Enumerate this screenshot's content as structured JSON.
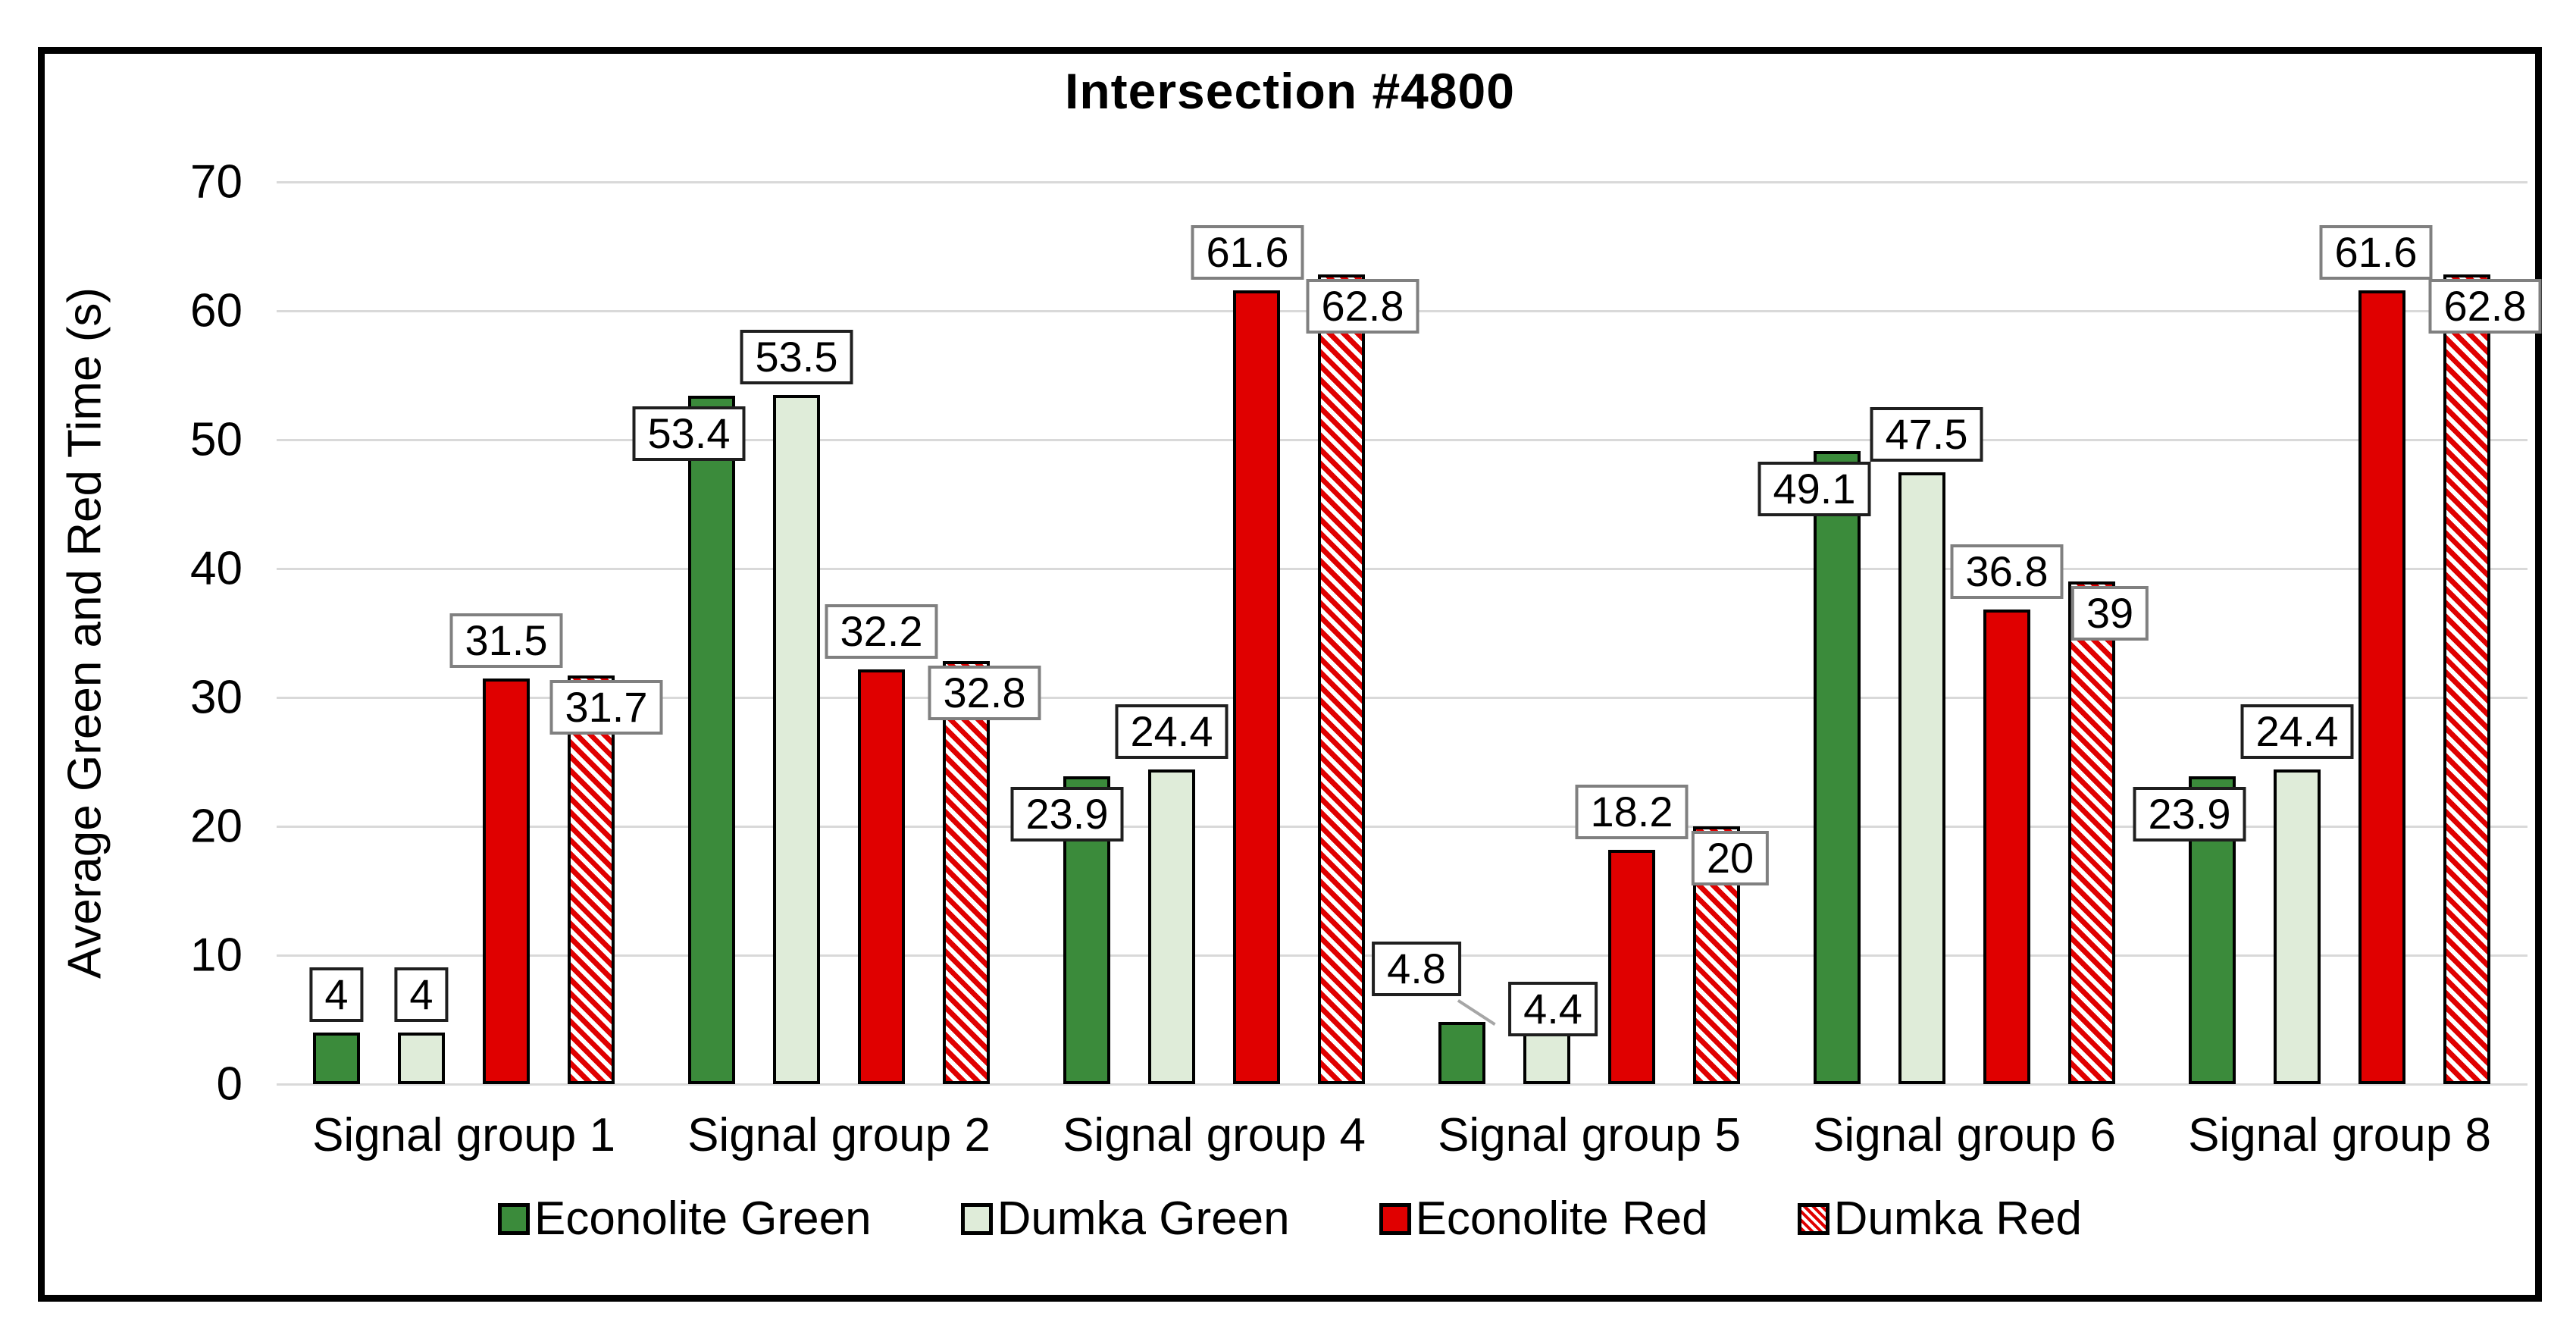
{
  "title": "Intersection #4800",
  "chart_data": {
    "type": "bar",
    "title": "Intersection #4800",
    "xlabel": "",
    "ylabel": "Average Green and Red Time (s)",
    "ylim": [
      0,
      70
    ],
    "ytick_step": 10,
    "yticks": [
      "0",
      "10",
      "20",
      "30",
      "40",
      "50",
      "60",
      "70"
    ],
    "grid": true,
    "legend_position": "bottom",
    "categories": [
      "Signal group 1",
      "Signal group 2",
      "Signal group 4",
      "Signal group 5",
      "Signal group 6",
      "Signal group 8"
    ],
    "series": [
      {
        "name": "Econolite Green",
        "color": "#3b8b3b",
        "fill": "solid",
        "label_border_color": "#1f1f1f",
        "values": [
          4,
          53.4,
          23.9,
          4.8,
          49.1,
          23.9
        ],
        "labels": [
          "4",
          "53.4",
          "23.9",
          "4.8",
          "49.1",
          "23.9"
        ]
      },
      {
        "name": "Dumka Green",
        "color": "#dfecd9",
        "fill": "solid",
        "label_border_color": "#1f1f1f",
        "values": [
          4,
          53.5,
          24.4,
          4.4,
          47.5,
          24.4
        ],
        "labels": [
          "4",
          "53.5",
          "24.4",
          "4.4",
          "47.5",
          "24.4"
        ]
      },
      {
        "name": "Econolite Red",
        "color": "#e00000",
        "fill": "solid",
        "label_border_color": "#808080",
        "values": [
          31.5,
          32.2,
          61.6,
          18.2,
          36.8,
          61.6
        ],
        "labels": [
          "31.5",
          "32.2",
          "61.6",
          "18.2",
          "36.8",
          "61.6"
        ]
      },
      {
        "name": "Dumka Red",
        "color": "#e00000",
        "fill": "diagonal-hatch",
        "label_border_color": "#808080",
        "values": [
          31.7,
          32.8,
          62.8,
          20,
          39,
          62.8
        ],
        "labels": [
          "31.7",
          "32.8",
          "62.8",
          "20",
          "39",
          "62.8"
        ]
      }
    ]
  },
  "colors": {
    "background": "#ffffff",
    "frame_border": "#000000",
    "grid": "#d9d9d9",
    "bar_outline": "#000000",
    "label_bg": "#ffffff",
    "green_label_border": "#1f1f1f",
    "red_label_border": "#808080"
  }
}
